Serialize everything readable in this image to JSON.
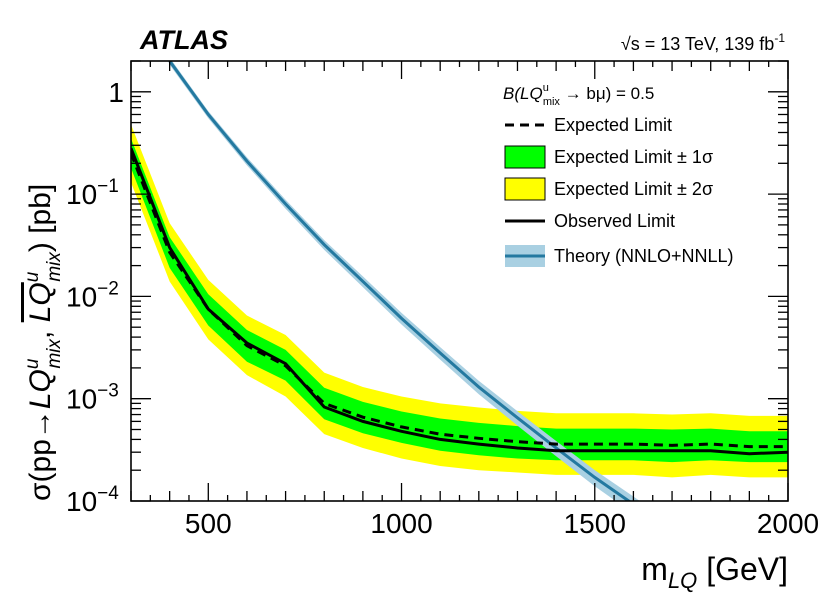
{
  "chart_data": {
    "type": "line",
    "experiment": "ATLAS",
    "energy_lumi": {
      "sqrt_s": "√s = 13 TeV, 139 fb",
      "lumi_exp": "-1"
    },
    "branching_label": {
      "prefix": "B(LQ",
      "sup": "u",
      "sub": "mix",
      "suffix": " → bμ) = 0.5"
    },
    "xlabel": "m_LQ [GeV]",
    "ylabel": "σ(pp→LQ^u_mix LQ-bar^u_mix) [pb]",
    "xlim": [
      300,
      2000
    ],
    "ylim": [
      0.0001,
      2
    ],
    "yscale": "log",
    "x_ticks": [
      {
        "value": 500,
        "label": "500"
      },
      {
        "value": 1000,
        "label": "1000"
      },
      {
        "value": 1500,
        "label": "1500"
      },
      {
        "value": 2000,
        "label": "2000"
      }
    ],
    "y_ticks": [
      {
        "value": 1,
        "mantissa": "1",
        "exp": ""
      },
      {
        "value": 0.1,
        "mantissa": "10",
        "exp": "−1"
      },
      {
        "value": 0.01,
        "mantissa": "10",
        "exp": "−2"
      },
      {
        "value": 0.001,
        "mantissa": "10",
        "exp": "−3"
      },
      {
        "value": 0.0001,
        "mantissa": "10",
        "exp": "−4"
      }
    ],
    "legend_position": "top-right",
    "legend": [
      {
        "key": "expected",
        "label": "Expected Limit"
      },
      {
        "key": "band1",
        "label": "Expected Limit ± 1σ"
      },
      {
        "key": "band2",
        "label": "Expected Limit ± 2σ"
      },
      {
        "key": "observed",
        "label": "Observed Limit"
      },
      {
        "key": "theory",
        "label": "Theory (NNLO+NNLL)"
      }
    ],
    "colors": {
      "band2": "#ffff00",
      "band1": "#00ff00",
      "observed": "#000000",
      "expected": "#000000",
      "theory": "#2479a0",
      "theory_band": "#a9d0e2"
    },
    "mass": [
      300,
      400,
      500,
      600,
      700,
      800,
      900,
      1000,
      1100,
      1200,
      1300,
      1400,
      1500,
      1600,
      1700,
      1800,
      1900,
      2000
    ],
    "expected": [
      0.25,
      0.027,
      0.0075,
      0.0033,
      0.0021,
      0.0009,
      0.00066,
      0.00053,
      0.00045,
      0.00041,
      0.00038,
      0.00036,
      0.00036,
      0.00036,
      0.00035,
      0.00036,
      0.00034,
      0.00034
    ],
    "band1": {
      "low": [
        0.18,
        0.019,
        0.0052,
        0.0023,
        0.0015,
        0.00063,
        0.00046,
        0.00037,
        0.00031,
        0.00028,
        0.00026,
        0.00025,
        0.00025,
        0.00025,
        0.00024,
        0.00025,
        0.00024,
        0.00024
      ],
      "high": [
        0.35,
        0.038,
        0.0105,
        0.0047,
        0.003,
        0.00128,
        0.00093,
        0.00075,
        0.00064,
        0.00058,
        0.00054,
        0.00051,
        0.00051,
        0.00051,
        0.0005,
        0.00051,
        0.00048,
        0.00048
      ]
    },
    "band2": {
      "low": [
        0.13,
        0.014,
        0.0038,
        0.0017,
        0.00105,
        0.00045,
        0.00033,
        0.00026,
        0.00022,
        0.0002,
        0.00019,
        0.00018,
        0.00018,
        0.00018,
        0.00017,
        0.00018,
        0.00017,
        0.00017
      ],
      "high": [
        0.48,
        0.052,
        0.0145,
        0.0065,
        0.0042,
        0.0018,
        0.0013,
        0.00105,
        0.0009,
        0.00082,
        0.00076,
        0.00072,
        0.00072,
        0.00072,
        0.0007,
        0.00072,
        0.00068,
        0.00068
      ]
    },
    "observed": [
      0.28,
      0.03,
      0.0075,
      0.0035,
      0.0022,
      0.00083,
      0.0006,
      0.00048,
      0.0004,
      0.00036,
      0.00033,
      0.00031,
      0.00031,
      0.00031,
      0.00031,
      0.00031,
      0.00029,
      0.0003
    ],
    "theory": {
      "mass": [
        400,
        500,
        600,
        700,
        800,
        900,
        1000,
        1100,
        1200,
        1300,
        1400,
        1500,
        1600,
        1700
      ],
      "xsec": [
        2.0,
        0.6,
        0.21,
        0.08,
        0.032,
        0.014,
        0.0061,
        0.0028,
        0.0013,
        0.00065,
        0.00033,
        0.00017,
        9.3e-05,
        5e-05
      ],
      "rel_unc": [
        0.08,
        0.08,
        0.09,
        0.1,
        0.11,
        0.12,
        0.13,
        0.14,
        0.15,
        0.16,
        0.17,
        0.18,
        0.19,
        0.2
      ]
    }
  }
}
